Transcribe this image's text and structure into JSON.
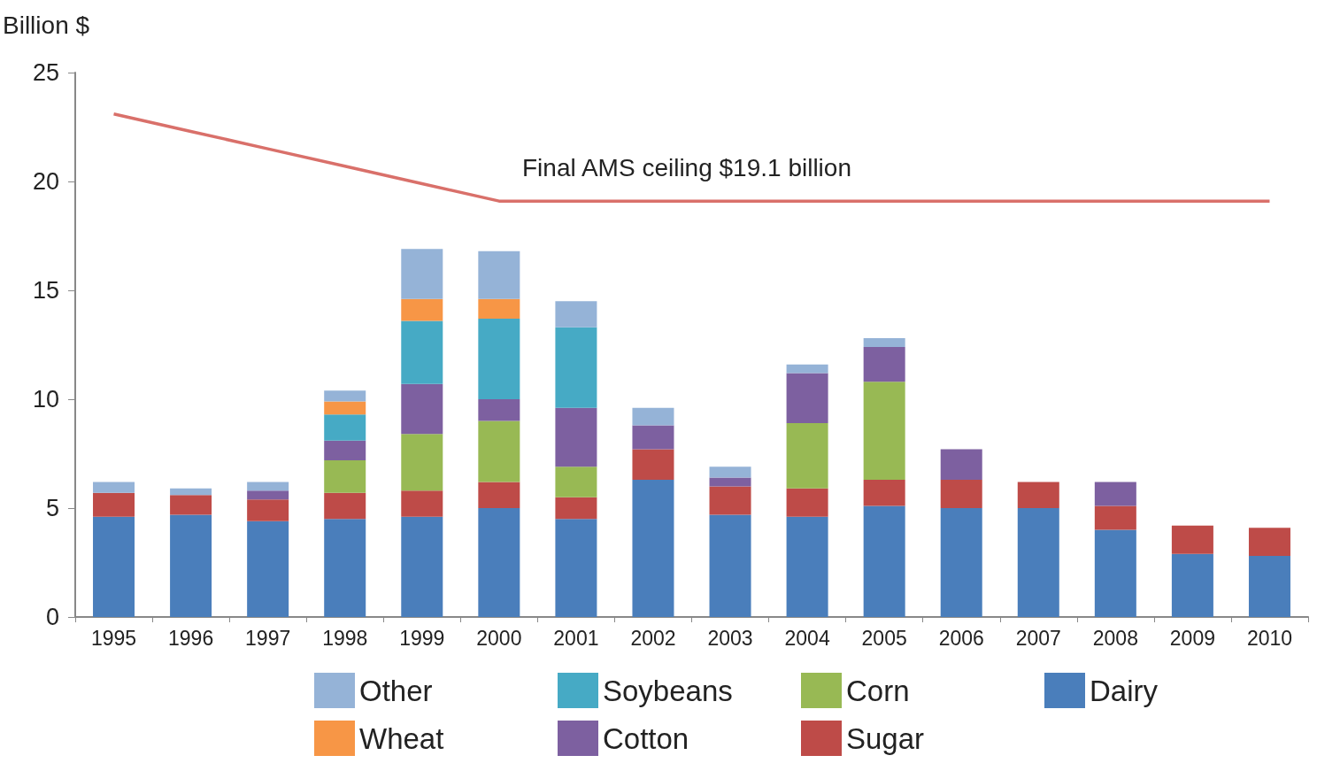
{
  "chart_data": {
    "type": "bar",
    "ylabel": "Billion $",
    "categories": [
      "1995",
      "1996",
      "1997",
      "1998",
      "1999",
      "2000",
      "2001",
      "2002",
      "2003",
      "2004",
      "2005",
      "2006",
      "2007",
      "2008",
      "2009",
      "2010"
    ],
    "stacked": true,
    "series": [
      {
        "name": "Dairy",
        "color": "#4a7ebb",
        "values": [
          4.6,
          4.7,
          4.4,
          4.5,
          4.6,
          5.0,
          4.5,
          6.3,
          4.7,
          4.6,
          5.1,
          5.0,
          5.0,
          4.0,
          2.9,
          2.8
        ]
      },
      {
        "name": "Sugar",
        "color": "#be4b48",
        "values": [
          1.1,
          0.9,
          1.0,
          1.2,
          1.2,
          1.2,
          1.0,
          1.4,
          1.3,
          1.3,
          1.2,
          1.3,
          1.2,
          1.1,
          1.3,
          1.3
        ]
      },
      {
        "name": "Corn",
        "color": "#98b954",
        "values": [
          null,
          null,
          null,
          1.5,
          2.6,
          2.8,
          1.4,
          null,
          null,
          3.0,
          4.5,
          null,
          null,
          null,
          null,
          null
        ]
      },
      {
        "name": "Cotton",
        "color": "#7d60a0",
        "values": [
          null,
          null,
          0.4,
          0.9,
          2.3,
          1.0,
          2.7,
          1.1,
          0.4,
          2.3,
          1.6,
          1.4,
          null,
          1.1,
          null,
          null
        ]
      },
      {
        "name": "Soybeans",
        "color": "#46aac5",
        "values": [
          null,
          null,
          null,
          1.2,
          2.9,
          3.7,
          3.7,
          null,
          null,
          null,
          null,
          null,
          null,
          null,
          null,
          null
        ]
      },
      {
        "name": "Wheat",
        "color": "#f79646",
        "values": [
          null,
          null,
          null,
          0.6,
          1.0,
          0.9,
          null,
          null,
          null,
          null,
          null,
          null,
          null,
          null,
          null,
          null
        ]
      },
      {
        "name": "Other",
        "color": "#95b3d7",
        "values": [
          0.5,
          0.3,
          0.4,
          0.5,
          2.3,
          2.2,
          1.2,
          0.8,
          0.5,
          0.4,
          0.4,
          null,
          null,
          null,
          null,
          null
        ]
      },
      {
        "type": "line",
        "color": "#d9706a",
        "values": [
          23.1,
          22.3,
          21.5,
          20.7,
          19.9,
          19.1,
          19.1,
          19.1,
          19.1,
          19.1,
          19.1,
          19.1,
          19.1,
          19.1,
          19.1,
          19.1
        ]
      }
    ],
    "annotations": [
      "Final AMS ceiling $19.1 billion"
    ],
    "ylim": [
      0,
      25
    ],
    "yticks": [
      0,
      5,
      10,
      15,
      20,
      25
    ],
    "grid": false,
    "legend": "bottom"
  }
}
